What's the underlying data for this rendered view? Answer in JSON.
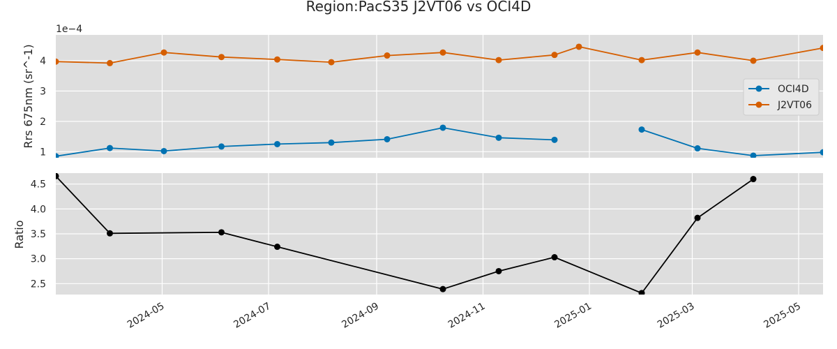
{
  "chart_data": {
    "title": "Region:PacS35 J2VT06 vs OCI4D",
    "x_ticks": [
      "2024-05",
      "2024-07",
      "2024-09",
      "2024-11",
      "2025-01",
      "2025-03",
      "2025-05"
    ],
    "xlim": [
      "2024-03-01",
      "2025-05-15"
    ],
    "panels": [
      {
        "type": "line",
        "ylabel": "Rrs 675nm (sr^-1)",
        "offset_label": "1e−4",
        "ylim": [
          0.8,
          4.85
        ],
        "y_ticks": [
          1,
          2,
          3,
          4
        ],
        "grid": true,
        "legend": "center-right",
        "series": [
          {
            "name": "OCI4D",
            "color": "#0072b2",
            "points": [
              {
                "x": "2024-03-01",
                "y": 0.85
              },
              {
                "x": "2024-04-01",
                "y": 1.12
              },
              {
                "x": "2024-05-02",
                "y": 1.02
              },
              {
                "x": "2024-06-04",
                "y": 1.17
              },
              {
                "x": "2024-07-06",
                "y": 1.25
              },
              {
                "x": "2024-08-06",
                "y": 1.3
              },
              {
                "x": "2024-09-07",
                "y": 1.41
              },
              {
                "x": "2024-10-09",
                "y": 1.79
              },
              {
                "x": "2024-11-10",
                "y": 1.46
              },
              {
                "x": "2024-12-12",
                "y": 1.39
              },
              {
                "x": "2025-01-13",
                "y": null
              },
              {
                "x": "2025-01-31",
                "y": 1.73
              },
              {
                "x": "2025-03-04",
                "y": 1.11
              },
              {
                "x": "2025-04-05",
                "y": 0.87
              },
              {
                "x": "2025-05-15",
                "y": 0.98
              }
            ]
          },
          {
            "name": "J2VT06",
            "color": "#d55e00",
            "points": [
              {
                "x": "2024-03-01",
                "y": 3.97
              },
              {
                "x": "2024-04-01",
                "y": 3.92
              },
              {
                "x": "2024-05-02",
                "y": 4.27
              },
              {
                "x": "2024-06-04",
                "y": 4.12
              },
              {
                "x": "2024-07-06",
                "y": 4.04
              },
              {
                "x": "2024-08-06",
                "y": 3.95
              },
              {
                "x": "2024-09-07",
                "y": 4.17
              },
              {
                "x": "2024-10-09",
                "y": 4.27
              },
              {
                "x": "2024-11-10",
                "y": 4.02
              },
              {
                "x": "2024-12-12",
                "y": 4.19
              },
              {
                "x": "2024-12-26",
                "y": 4.46
              },
              {
                "x": "2025-01-31",
                "y": 4.02
              },
              {
                "x": "2025-03-04",
                "y": 4.27
              },
              {
                "x": "2025-04-05",
                "y": 4.0
              },
              {
                "x": "2025-05-15",
                "y": 4.42
              }
            ]
          }
        ]
      },
      {
        "type": "line",
        "ylabel": "Ratio",
        "ylim": [
          2.28,
          4.72
        ],
        "y_ticks": [
          "2.5",
          "3.0",
          "3.5",
          "4.0",
          "4.5"
        ],
        "grid": true,
        "series": [
          {
            "name": "",
            "color": "#000000",
            "points": [
              {
                "x": "2024-03-01",
                "y": 4.66
              },
              {
                "x": "2024-04-01",
                "y": 3.51
              },
              {
                "x": "2024-06-04",
                "y": 3.53
              },
              {
                "x": "2024-07-06",
                "y": 3.24
              },
              {
                "x": "2024-10-09",
                "y": 2.39
              },
              {
                "x": "2024-11-10",
                "y": 2.75
              },
              {
                "x": "2024-12-12",
                "y": 3.03
              },
              {
                "x": "2025-01-31",
                "y": 2.31
              },
              {
                "x": "2025-03-04",
                "y": 3.82
              },
              {
                "x": "2025-04-05",
                "y": 4.6
              }
            ]
          }
        ]
      }
    ]
  }
}
